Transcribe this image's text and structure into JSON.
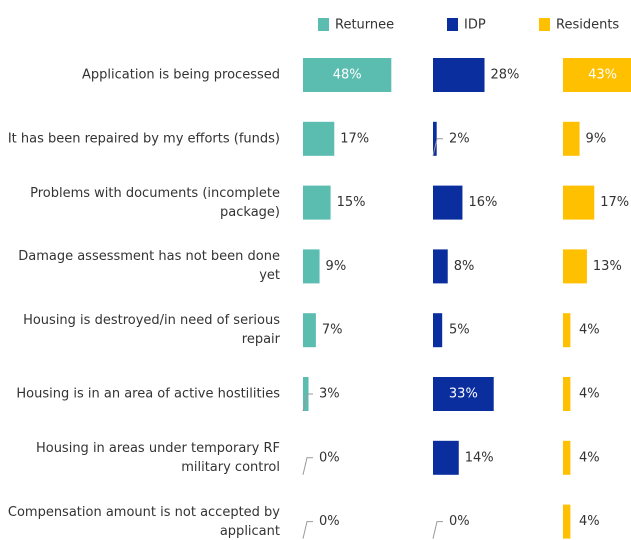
{
  "chart_data": {
    "type": "bar",
    "orientation": "horizontal",
    "legend": "top",
    "categories": [
      "Application is being processed",
      "It has been repaired by my efforts (funds)",
      "Problems with documents (incomplete package)",
      "Damage assessment has not been done yet",
      "Housing is destroyed/in need of serious repair",
      "Housing is in an area of active hostilities",
      "Housing in areas under temporary RF military control",
      "Compensation amount is not accepted by applicant"
    ],
    "series": [
      {
        "name": "Returnee",
        "color": "#5bbcb0",
        "values": [
          48,
          17,
          15,
          9,
          7,
          3,
          0,
          0
        ],
        "value_labels": [
          "48%",
          "17%",
          "15%",
          "9%",
          "7%",
          "3%",
          "0%",
          "0%"
        ]
      },
      {
        "name": "IDP",
        "color": "#0a2e9e",
        "values": [
          28,
          2,
          16,
          8,
          5,
          33,
          14,
          0
        ],
        "value_labels": [
          "28%",
          "2%",
          "16%",
          "8%",
          "5%",
          "33%",
          "14%",
          "0%"
        ]
      },
      {
        "name": "Residents",
        "color": "#ffc000",
        "values": [
          43,
          9,
          17,
          13,
          4,
          4,
          4,
          4
        ],
        "value_labels": [
          "43%",
          "9%",
          "17%",
          "13%",
          "4%",
          "4%",
          "4%",
          "4%"
        ]
      }
    ]
  }
}
